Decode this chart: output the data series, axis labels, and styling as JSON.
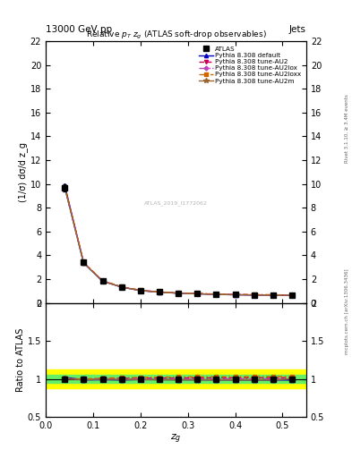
{
  "title_top": "13000 GeV pp",
  "title_right": "Jets",
  "plot_title": "Relative $p_T$ $z_g$ (ATLAS soft-drop observables)",
  "xlabel": "$z_g$",
  "ylabel_main": "(1/σ) dσ/d z_g",
  "ylabel_ratio": "Ratio to ATLAS",
  "right_label": "mcplots.cern.ch [arXiv:1306.3436]",
  "right_label2": "Rivet 3.1.10, ≥ 3.4M events",
  "watermark": "ATLAS_2019_I1772062",
  "atlas_x": [
    0.04,
    0.08,
    0.12,
    0.16,
    0.2,
    0.24,
    0.28,
    0.32,
    0.36,
    0.4,
    0.44,
    0.48,
    0.52
  ],
  "atlas_y": [
    9.7,
    3.4,
    1.85,
    1.35,
    1.05,
    0.92,
    0.83,
    0.78,
    0.73,
    0.7,
    0.68,
    0.67,
    0.65
  ],
  "atlas_yerr": [
    0.3,
    0.1,
    0.06,
    0.04,
    0.03,
    0.02,
    0.02,
    0.02,
    0.02,
    0.02,
    0.02,
    0.02,
    0.02
  ],
  "pythia_default_y": [
    9.9,
    3.35,
    1.83,
    1.33,
    1.04,
    0.91,
    0.82,
    0.77,
    0.72,
    0.69,
    0.67,
    0.66,
    0.64
  ],
  "pythia_AU2_y": [
    9.75,
    3.38,
    1.86,
    1.36,
    1.06,
    0.93,
    0.84,
    0.79,
    0.74,
    0.71,
    0.69,
    0.68,
    0.66
  ],
  "pythia_AU2lox_y": [
    9.72,
    3.37,
    1.85,
    1.35,
    1.05,
    0.92,
    0.83,
    0.78,
    0.73,
    0.7,
    0.68,
    0.67,
    0.65
  ],
  "pythia_AU2loxx_y": [
    9.78,
    3.39,
    1.87,
    1.37,
    1.07,
    0.94,
    0.85,
    0.8,
    0.75,
    0.72,
    0.7,
    0.69,
    0.67
  ],
  "pythia_AU2m_y": [
    9.73,
    3.36,
    1.84,
    1.34,
    1.04,
    0.91,
    0.82,
    0.77,
    0.72,
    0.69,
    0.67,
    0.66,
    0.65
  ],
  "color_default": "#0000bb",
  "color_AU2": "#cc0055",
  "color_AU2lox": "#bb44bb",
  "color_AU2loxx": "#cc6600",
  "color_AU2m": "#996633",
  "ylim_main": [
    0,
    22
  ],
  "yticks_main": [
    0,
    2,
    4,
    6,
    8,
    10,
    12,
    14,
    16,
    18,
    20,
    22
  ],
  "ylim_ratio": [
    0.5,
    2.0
  ],
  "yticks_ratio": [
    0.5,
    1.0,
    1.5,
    2.0
  ],
  "xlim": [
    0.0,
    0.55
  ],
  "xticks": [
    0.0,
    0.1,
    0.2,
    0.3,
    0.4,
    0.5
  ],
  "green_band": 0.05,
  "yellow_band": 0.12
}
